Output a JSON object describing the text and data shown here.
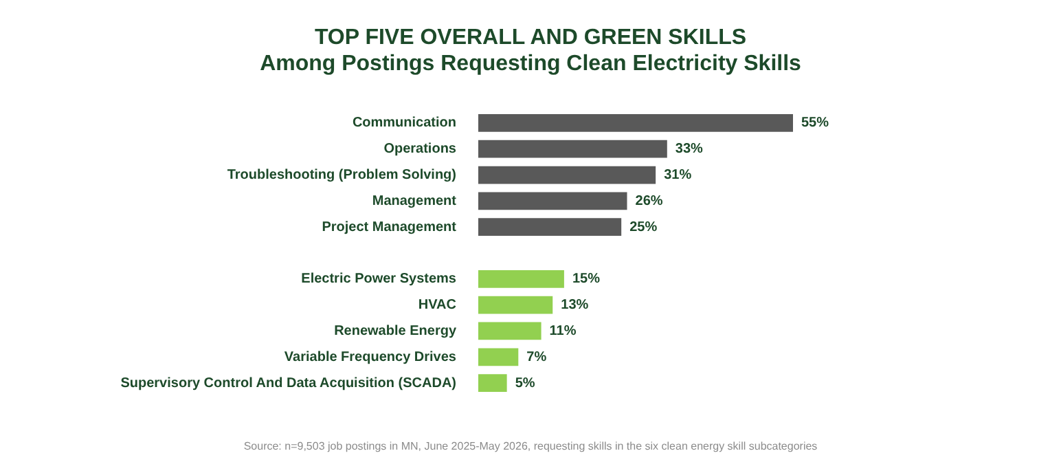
{
  "chart_data": {
    "type": "bar",
    "orientation": "horizontal",
    "title": "TOP FIVE OVERALL AND GREEN SKILLS\nAmong Postings Requesting Clean Electricity Skills",
    "categories": [
      "Communication",
      "Operations",
      "Troubleshooting (Problem Solving)",
      "Management",
      "Project Management",
      null,
      "Electric Power Systems",
      "HVAC",
      "Renewable Energy",
      "Variable Frequency Drives",
      "Supervisory Control And Data Acquisition (SCADA)"
    ],
    "values": [
      55,
      33,
      31,
      26,
      25,
      null,
      15,
      13,
      11,
      7,
      5
    ],
    "colors": [
      "#595959",
      "#595959",
      "#595959",
      "#595959",
      "#595959",
      "#595959",
      "#92d050",
      "#92d050",
      "#92d050",
      "#92d050",
      "#92d050"
    ],
    "value_labels": [
      "55%",
      "33%",
      "31%",
      "26%",
      "25%",
      null,
      "15%",
      "13%",
      "11%",
      "7%",
      "5%"
    ],
    "tick_labels": "y",
    "annotations": [
      "Source: n=9,503 job postings in MN, June 2025-May 2026, requesting skills in the six clean energy skill subcategories"
    ]
  }
}
